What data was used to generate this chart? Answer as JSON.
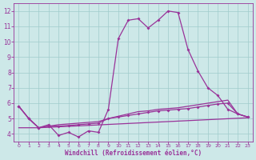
{
  "background_color": "#cde8e8",
  "line_color": "#993399",
  "grid_color": "#a0cccc",
  "xlabel": "Windchill (Refroidissement éolien,°C)",
  "xlim": [
    -0.5,
    23.5
  ],
  "ylim": [
    3.5,
    12.5
  ],
  "yticks": [
    4,
    5,
    6,
    7,
    8,
    9,
    10,
    11,
    12
  ],
  "line1_x": [
    0,
    1,
    2,
    3,
    4,
    5,
    6,
    7,
    8,
    9,
    10,
    11,
    12,
    13,
    14,
    15,
    16,
    17,
    18,
    19,
    20,
    21,
    22,
    23
  ],
  "line1_y": [
    5.8,
    5.0,
    4.4,
    4.6,
    3.9,
    4.1,
    3.8,
    4.2,
    4.1,
    5.6,
    10.2,
    11.4,
    11.5,
    10.9,
    11.4,
    12.0,
    11.9,
    9.5,
    8.1,
    7.0,
    6.5,
    5.6,
    5.3,
    5.1
  ],
  "line2_x": [
    0,
    1,
    2,
    3,
    4,
    5,
    6,
    7,
    8,
    9,
    10,
    11,
    12,
    13,
    14,
    15,
    16,
    17,
    18,
    19,
    20,
    21,
    22,
    23
  ],
  "line2_y": [
    5.8,
    5.0,
    4.4,
    4.5,
    4.5,
    4.55,
    4.6,
    4.65,
    4.7,
    5.0,
    5.1,
    5.2,
    5.3,
    5.4,
    5.5,
    5.55,
    5.6,
    5.65,
    5.75,
    5.85,
    5.95,
    6.0,
    5.3,
    5.1
  ],
  "line3_x": [
    0,
    1,
    2,
    3,
    4,
    5,
    6,
    7,
    8,
    9,
    10,
    11,
    12,
    13,
    14,
    15,
    16,
    17,
    18,
    19,
    20,
    21,
    22,
    23
  ],
  "line3_y": [
    5.8,
    5.0,
    4.4,
    4.5,
    4.6,
    4.65,
    4.7,
    4.75,
    4.8,
    5.0,
    5.15,
    5.3,
    5.45,
    5.5,
    5.6,
    5.65,
    5.7,
    5.8,
    5.9,
    6.0,
    6.1,
    6.2,
    5.3,
    5.1
  ],
  "line4_x": [
    0,
    1,
    2,
    23
  ],
  "line4_y": [
    4.4,
    4.4,
    4.4,
    5.05
  ]
}
